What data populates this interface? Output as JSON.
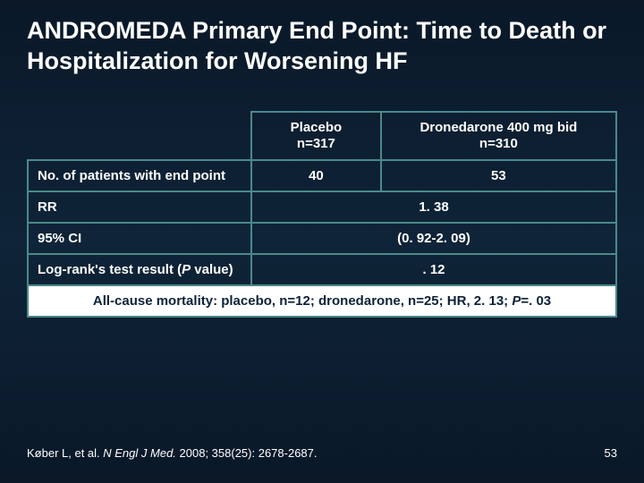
{
  "slide": {
    "title": "ANDROMEDA Primary End Point: Time to Death or Hospitalization for Worsening HF",
    "title_fontsize": 27,
    "title_color": "#ffffff",
    "background_gradient": [
      "#0a1828",
      "#0f2438",
      "#0a1828"
    ],
    "slide_number": "53"
  },
  "table": {
    "border_color": "#4a8a8a",
    "header_text_color": "#ffffff",
    "body_text_color": "#ffffff",
    "cell_fontsize": 15,
    "col_widths_pct": [
      38,
      22,
      40
    ],
    "header": {
      "col1_line1": "Placebo",
      "col1_line2": "n=317",
      "col2_line1": "Dronedarone 400 mg bid",
      "col2_line2": "n=310"
    },
    "rows": [
      {
        "label": "No. of patients with end point",
        "v1": "40",
        "v2": "53",
        "merged": false
      },
      {
        "label": "RR",
        "merged_value": "1. 38",
        "merged": true
      },
      {
        "label": "95% CI",
        "merged_value": "(0. 92-2. 09)",
        "merged": true
      },
      {
        "label": "Log-rank's test result (P value)",
        "merged_value": ". 12",
        "merged": true,
        "italic_p": true
      }
    ],
    "footnote": {
      "text": "All-cause mortality: placebo, n=12; dronedarone, n=25; HR, 2. 13; P=. 03",
      "bg": "#ffffff",
      "color": "#0d223a",
      "fontsize": 15
    }
  },
  "citation": {
    "prefix": "Køber L, et al. ",
    "journal": "N Engl J Med.",
    "suffix": " 2008; 358(25): 2678-2687.",
    "fontsize": 13,
    "color": "#ffffff"
  }
}
